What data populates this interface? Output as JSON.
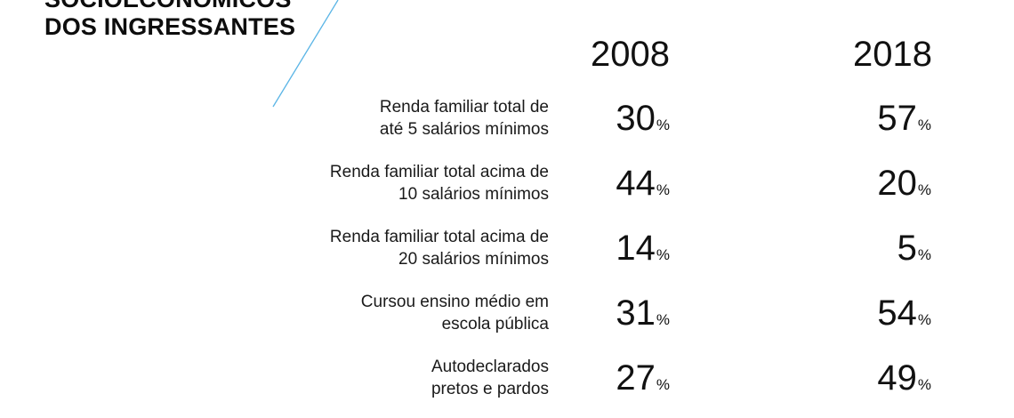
{
  "title": {
    "line1": "SOCIOECONÔMICOS",
    "line2": "DOS INGRESSANTES"
  },
  "years": [
    "2008",
    "2018"
  ],
  "percent_sign": "%",
  "accent_color": "#5bb5e6",
  "rows": [
    {
      "label_line1": "Renda familiar total de",
      "label_line2": "até 5 salários mínimos",
      "v2008": "30",
      "v2018": "57"
    },
    {
      "label_line1": "Renda familiar total acima de",
      "label_line2": "10 salários mínimos",
      "v2008": "44",
      "v2018": "20"
    },
    {
      "label_line1": "Renda familiar total acima de",
      "label_line2": "20 salários mínimos",
      "v2008": "14",
      "v2018": "5"
    },
    {
      "label_line1": "Cursou ensino médio em",
      "label_line2": "escola pública",
      "v2008": "31",
      "v2018": "54"
    },
    {
      "label_line1": "Autodeclarados",
      "label_line2": "pretos e pardos",
      "v2008": "27",
      "v2018": "49"
    }
  ]
}
